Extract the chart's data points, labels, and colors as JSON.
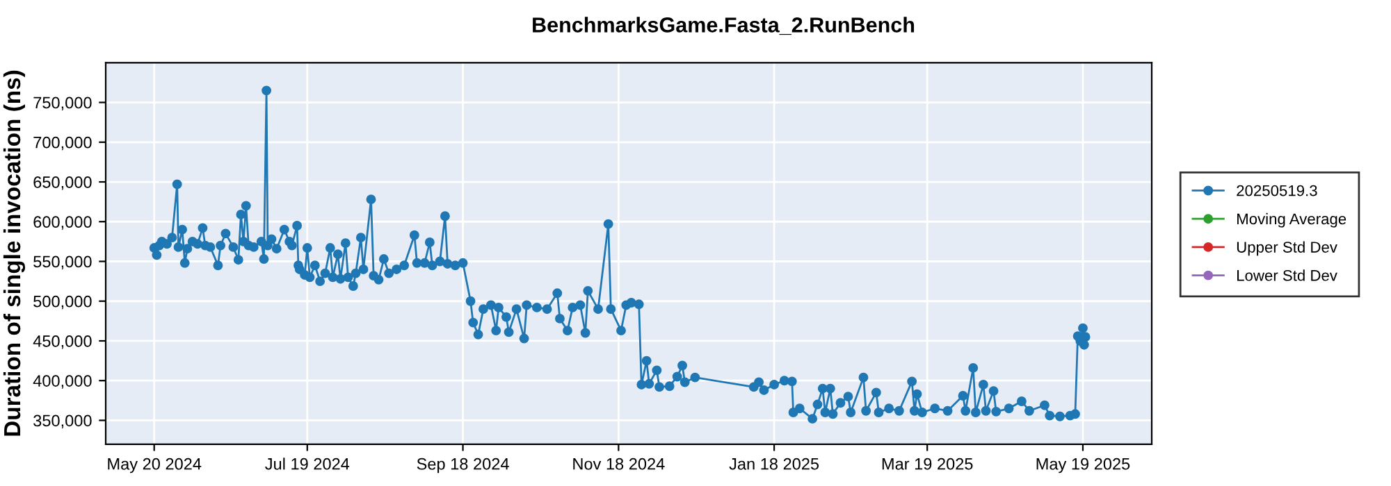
{
  "chart_data": {
    "type": "line",
    "title": "BenchmarksGame.Fasta_2.RunBench",
    "ylabel": "Duration of single invocation (ns)",
    "xlim": [
      "2024-05-01",
      "2025-06-15"
    ],
    "xticks": [
      {
        "value": "2024-05-20",
        "label": "May 20 2024"
      },
      {
        "value": "2024-07-19",
        "label": "Jul 19 2024"
      },
      {
        "value": "2024-09-18",
        "label": "Sep 18 2024"
      },
      {
        "value": "2024-11-18",
        "label": "Nov 18 2024"
      },
      {
        "value": "2025-01-18",
        "label": "Jan 18 2025"
      },
      {
        "value": "2025-03-19",
        "label": "Mar 19 2025"
      },
      {
        "value": "2025-05-19",
        "label": "May 19 2025"
      }
    ],
    "ylim": [
      320000,
      800000
    ],
    "yticks": [
      {
        "value": 350000,
        "label": "350,000"
      },
      {
        "value": 400000,
        "label": "400,000"
      },
      {
        "value": 450000,
        "label": "450,000"
      },
      {
        "value": 500000,
        "label": "500,000"
      },
      {
        "value": 550000,
        "label": "550,000"
      },
      {
        "value": 600000,
        "label": "600,000"
      },
      {
        "value": 650000,
        "label": "650,000"
      },
      {
        "value": 700000,
        "label": "700,000"
      },
      {
        "value": 750000,
        "label": "750,000"
      }
    ],
    "grid": true,
    "legend": "right",
    "marker": "circle",
    "line_style": "solid",
    "series": [
      {
        "name": "20250519.3",
        "color": "#1f77b4",
        "x": [
          "2024-05-20",
          "2024-05-21",
          "2024-05-22",
          "2024-05-23",
          "2024-05-25",
          "2024-05-27",
          "2024-05-29",
          "2024-05-29T12:00",
          "2024-05-31",
          "2024-06-01",
          "2024-06-02",
          "2024-06-04",
          "2024-06-06",
          "2024-06-08",
          "2024-06-09",
          "2024-06-11",
          "2024-06-14",
          "2024-06-15",
          "2024-06-17",
          "2024-06-20",
          "2024-06-22",
          "2024-06-23",
          "2024-06-24",
          "2024-06-25",
          "2024-06-26",
          "2024-06-28",
          "2024-07-01",
          "2024-07-02",
          "2024-07-03",
          "2024-07-03T12:00",
          "2024-07-05",
          "2024-07-07",
          "2024-07-10",
          "2024-07-12",
          "2024-07-13",
          "2024-07-15",
          "2024-07-15T12:00",
          "2024-07-16",
          "2024-07-18",
          "2024-07-19",
          "2024-07-20",
          "2024-07-22",
          "2024-07-24",
          "2024-07-26",
          "2024-07-28",
          "2024-07-29",
          "2024-07-31",
          "2024-08-01",
          "2024-08-03",
          "2024-08-04",
          "2024-08-06",
          "2024-08-07",
          "2024-08-09",
          "2024-08-10",
          "2024-08-13",
          "2024-08-14",
          "2024-08-16",
          "2024-08-18",
          "2024-08-20",
          "2024-08-23",
          "2024-08-26",
          "2024-08-30",
          "2024-08-31",
          "2024-09-03",
          "2024-09-05",
          "2024-09-06",
          "2024-09-09",
          "2024-09-11",
          "2024-09-12",
          "2024-09-15",
          "2024-09-18",
          "2024-09-21",
          "2024-09-22",
          "2024-09-24",
          "2024-09-26",
          "2024-09-29",
          "2024-10-01",
          "2024-10-02",
          "2024-10-05",
          "2024-10-06",
          "2024-10-09",
          "2024-10-12",
          "2024-10-13",
          "2024-10-17",
          "2024-10-21",
          "2024-10-25",
          "2024-10-26",
          "2024-10-29",
          "2024-10-31",
          "2024-11-03",
          "2024-11-05",
          "2024-11-06",
          "2024-11-10",
          "2024-11-14",
          "2024-11-15",
          "2024-11-19",
          "2024-11-21",
          "2024-11-23",
          "2024-11-26",
          "2024-11-27",
          "2024-11-29",
          "2024-11-30",
          "2024-12-03",
          "2024-12-04",
          "2024-12-08",
          "2024-12-11",
          "2024-12-13",
          "2024-12-14",
          "2024-12-18",
          "2025-01-10",
          "2025-01-12",
          "2025-01-14",
          "2025-01-18",
          "2025-01-22",
          "2025-01-25",
          "2025-01-25T12:00",
          "2025-01-28",
          "2025-02-02",
          "2025-02-04",
          "2025-02-06",
          "2025-02-07",
          "2025-02-09",
          "2025-02-10",
          "2025-02-13",
          "2025-02-16",
          "2025-02-17",
          "2025-02-22",
          "2025-02-23",
          "2025-02-27",
          "2025-02-28",
          "2025-03-04",
          "2025-03-08",
          "2025-03-13",
          "2025-03-14",
          "2025-03-15",
          "2025-03-17",
          "2025-03-22",
          "2025-03-27",
          "2025-04-02",
          "2025-04-03",
          "2025-04-06",
          "2025-04-07",
          "2025-04-10",
          "2025-04-11",
          "2025-04-14",
          "2025-04-15",
          "2025-04-20",
          "2025-04-25",
          "2025-04-28",
          "2025-05-04",
          "2025-05-06",
          "2025-05-10",
          "2025-05-14",
          "2025-05-16",
          "2025-05-17",
          "2025-05-18",
          "2025-05-19",
          "2025-05-19T12:00",
          "2025-05-20"
        ],
        "values": [
          567000,
          558000,
          570000,
          575000,
          572000,
          580000,
          647000,
          568000,
          590000,
          548000,
          566000,
          575000,
          572000,
          592000,
          570000,
          568000,
          545000,
          570000,
          585000,
          568000,
          552000,
          609000,
          575000,
          620000,
          570000,
          568000,
          575000,
          553000,
          765000,
          570000,
          578000,
          566000,
          590000,
          575000,
          570000,
          595000,
          545000,
          540000,
          533000,
          567000,
          530000,
          545000,
          525000,
          535000,
          567000,
          530000,
          559000,
          528000,
          573000,
          530000,
          519000,
          535000,
          580000,
          540000,
          628000,
          532000,
          527000,
          553000,
          535000,
          540000,
          545000,
          583000,
          548000,
          548000,
          574000,
          545000,
          550000,
          607000,
          547000,
          545000,
          548000,
          500000,
          473000,
          458000,
          490000,
          495000,
          463000,
          492000,
          480000,
          461000,
          490000,
          453000,
          495000,
          492000,
          490000,
          510000,
          478000,
          463000,
          492000,
          495000,
          460000,
          513000,
          490000,
          597000,
          490000,
          463000,
          495000,
          498000,
          496000,
          395000,
          425000,
          396000,
          413000,
          392000,
          393000,
          405000,
          419000,
          398000,
          404000,
          392000,
          398000,
          388000,
          395000,
          400000,
          399000,
          360000,
          365000,
          352000,
          370000,
          390000,
          360000,
          390000,
          358000,
          372000,
          380000,
          360000,
          404000,
          362000,
          385000,
          360000,
          365000,
          362000,
          399000,
          362000,
          383000,
          360000,
          365000,
          362000,
          381000,
          362000,
          416000,
          360000,
          395000,
          362000,
          387000,
          361000,
          365000,
          374000,
          362000,
          369000,
          356000,
          355000,
          356000,
          358000,
          456000,
          450000,
          466000,
          445000,
          455000
        ]
      },
      {
        "name": "Moving Average",
        "color": "#2ca02c"
      },
      {
        "name": "Upper Std Dev",
        "color": "#d62728"
      },
      {
        "name": "Lower Std Dev",
        "color": "#9467bd"
      }
    ]
  }
}
